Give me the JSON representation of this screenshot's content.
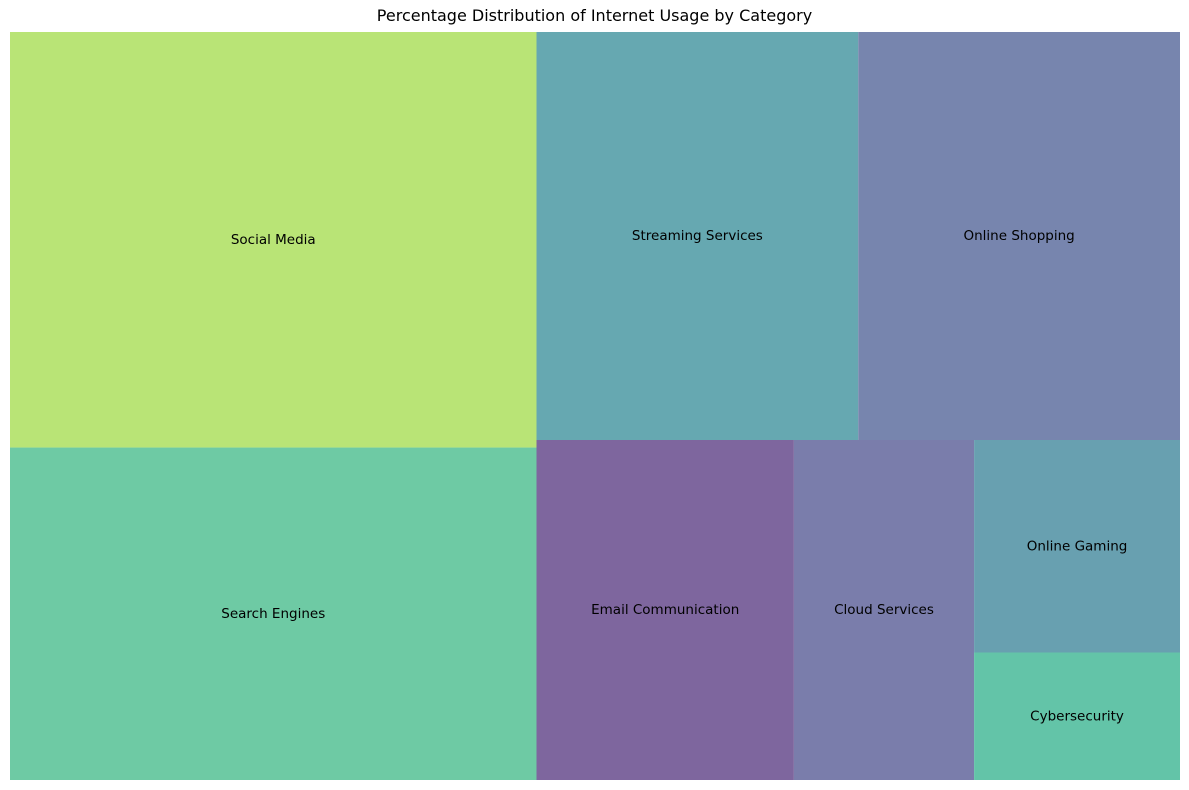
{
  "chart_data": {
    "type": "treemap",
    "title": "Percentage Distribution of Internet Usage by Category",
    "categories": [
      "Social Media",
      "Search Engines",
      "Streaming Services",
      "Online Shopping",
      "Email Communication",
      "Cloud Services",
      "Online Gaming",
      "Cybersecurity"
    ],
    "values": [
      25,
      20,
      15,
      15,
      10,
      7,
      5,
      3
    ],
    "colors": [
      "#b9e476",
      "#6ecaa4",
      "#66a8b1",
      "#7785ae",
      "#7e669e",
      "#7a7dab",
      "#68a0b0",
      "#63c4a8"
    ],
    "grid": false,
    "axes": false
  }
}
